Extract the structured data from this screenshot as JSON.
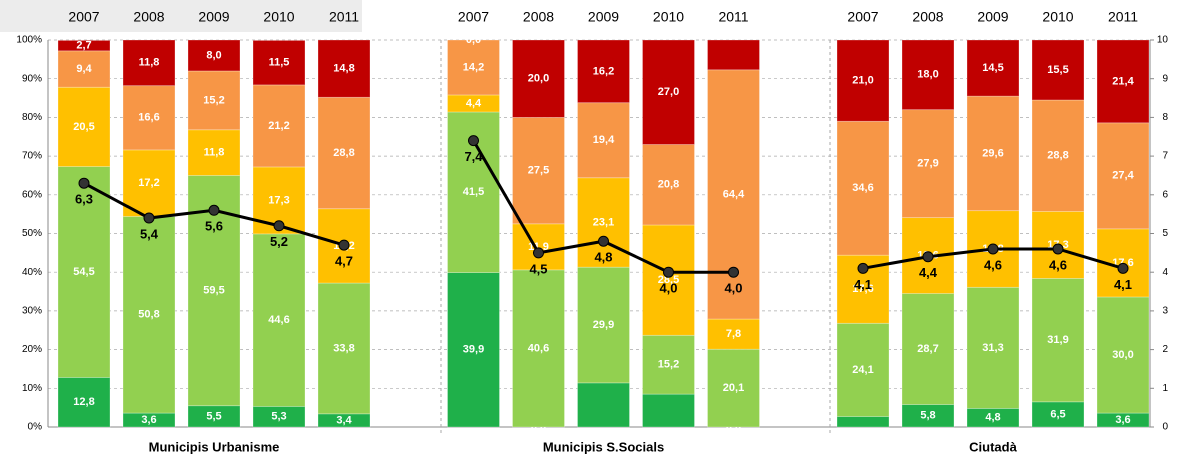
{
  "chart_data": {
    "type": "stacked_bar_line",
    "categories": [
      "2007",
      "2008",
      "2009",
      "2010",
      "2011",
      "2007",
      "2008",
      "2009",
      "2010",
      "2011",
      "2007",
      "2008",
      "2009",
      "2010",
      "2011"
    ],
    "groups": [
      "Municipis Urbanisme",
      "Municipis S.Socials",
      "Ciutadà"
    ],
    "ylim": [
      0,
      100
    ],
    "yticks": [
      {
        "value": 0,
        "label": "0%"
      },
      {
        "value": 10,
        "label": "10%"
      },
      {
        "value": 20,
        "label": "20%"
      },
      {
        "value": 30,
        "label": "30%"
      },
      {
        "value": 40,
        "label": "40%"
      },
      {
        "value": 50,
        "label": "50%"
      },
      {
        "value": 60,
        "label": "60%"
      },
      {
        "value": 70,
        "label": "70%"
      },
      {
        "value": 80,
        "label": "80%"
      },
      {
        "value": 90,
        "label": "90%"
      },
      {
        "value": 100,
        "label": "100%"
      }
    ],
    "y2lim": [
      0,
      10
    ],
    "y2ticks": [
      0,
      1,
      2,
      3,
      4,
      5,
      6,
      7,
      8,
      9,
      10
    ],
    "grid": true,
    "series": [
      {
        "color": "#1fb04a",
        "values": [
          12.8,
          3.6,
          5.5,
          5.3,
          3.4,
          39.9,
          0.0,
          11.4,
          8.5,
          0.0,
          2.7,
          5.8,
          4.8,
          6.5,
          3.6
        ],
        "value_labels": [
          "12,8",
          "3,6",
          "5,5",
          "5,3",
          "3,4",
          "39,9",
          "0,0",
          null,
          null,
          "0,0",
          null,
          "5,8",
          "4,8",
          "6,5",
          "3,6"
        ]
      },
      {
        "color": "#92d050",
        "values": [
          54.5,
          50.8,
          59.5,
          44.6,
          33.8,
          41.5,
          40.6,
          29.9,
          15.2,
          20.1,
          24.1,
          28.7,
          31.3,
          31.9,
          30.0
        ],
        "value_labels": [
          "54,5",
          "50,8",
          "59,5",
          "44,6",
          "33,8",
          "41,5",
          "40,6",
          "29,9",
          "15,2",
          "20,1",
          "24,1",
          "28,7",
          "31,3",
          "31,9",
          "30,0"
        ]
      },
      {
        "color": "#ffc000",
        "values": [
          20.5,
          17.2,
          11.8,
          17.3,
          19.2,
          4.4,
          11.9,
          23.1,
          28.5,
          7.8,
          17.6,
          19.6,
          19.8,
          17.3,
          17.6
        ],
        "value_labels": [
          "20,5",
          "17,2",
          "11,8",
          "17,3",
          "19,2",
          "4,4",
          "11,9",
          "23,1",
          "28,5",
          "7,8",
          "17,6",
          "19,6",
          "19,8",
          "17,3",
          "17,6"
        ]
      },
      {
        "color": "#f79646",
        "values": [
          9.4,
          16.6,
          15.2,
          21.2,
          28.8,
          14.2,
          27.5,
          19.4,
          20.8,
          64.4,
          34.6,
          27.9,
          29.6,
          28.8,
          27.4
        ],
        "value_labels": [
          "9,4",
          "16,6",
          "15,2",
          "21,2",
          "28,8",
          "14,2",
          "27,5",
          "19,4",
          "20,8",
          "64,4",
          "34,6",
          "27,9",
          "29,6",
          "28,8",
          "27,4"
        ]
      },
      {
        "color": "#c00000",
        "values": [
          2.7,
          11.8,
          8.0,
          11.5,
          14.8,
          0.0,
          20.0,
          16.2,
          27.0,
          7.7,
          21.0,
          18.0,
          14.5,
          15.5,
          21.4
        ],
        "value_labels": [
          "2,7",
          "11,8",
          "8,0",
          "11,5",
          "14,8",
          "0,0",
          "20,0",
          "16,2",
          "27,0",
          null,
          "21,0",
          "18,0",
          "14,5",
          "15,5",
          "21,4"
        ]
      }
    ],
    "line": {
      "color": "#000000",
      "axis": "y2",
      "values": [
        6.3,
        5.4,
        5.6,
        5.2,
        4.7,
        7.4,
        4.5,
        4.8,
        4.0,
        4.0,
        4.1,
        4.4,
        4.6,
        4.6,
        4.1
      ],
      "value_labels": [
        "6,3",
        "5,4",
        "5,6",
        "5,2",
        "4,7",
        "7,4",
        "4,5",
        "4,8",
        "4,0",
        "4,0",
        "4,1",
        "4,4",
        "4,6",
        "4,6",
        "4,1"
      ]
    }
  }
}
